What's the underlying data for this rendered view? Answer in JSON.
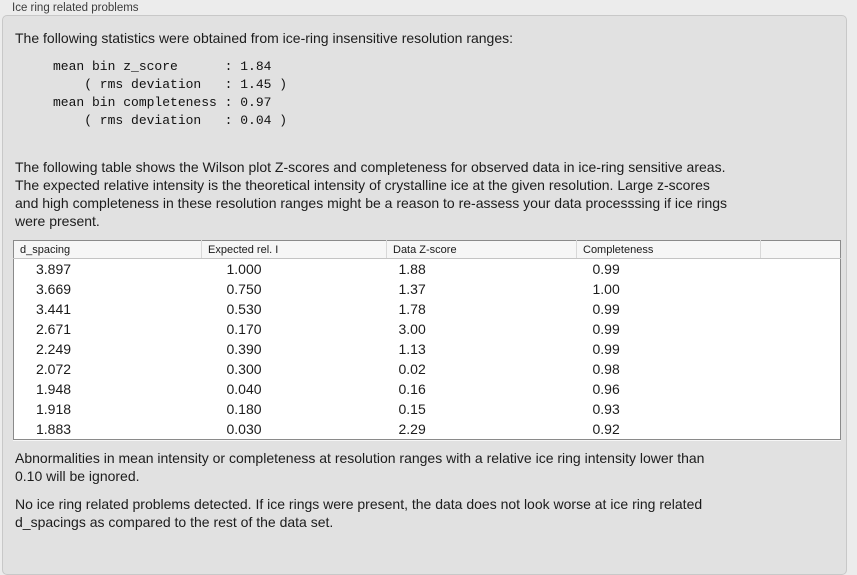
{
  "panel": {
    "title": "Ice ring related problems"
  },
  "intro": "The following statistics were obtained from ice-ring insensitive resolution ranges:",
  "stats_block": "mean bin z_score      : 1.84\n    ( rms deviation   : 1.45 )\nmean bin completeness : 0.97\n    ( rms deviation   : 0.04 )",
  "stats": {
    "mean_bin_z_score": "1.84",
    "z_score_rms_deviation": "1.45",
    "mean_bin_completeness": "0.97",
    "completeness_rms_deviation": "0.04"
  },
  "table_intro": "The following table shows the Wilson plot Z-scores and completeness for observed data in ice-ring sensitive areas.\nThe expected relative intensity is the theoretical intensity of crystalline ice at the given resolution. Large z-scores\nand high completeness in these resolution ranges might be a reason to re-assess your data processsing if ice rings\nwere present.",
  "table": {
    "columns": [
      "d_spacing",
      "Expected rel. I",
      "Data Z-score",
      "Completeness",
      ""
    ],
    "rows": [
      [
        "3.897",
        "1.000",
        "1.88",
        "0.99"
      ],
      [
        "3.669",
        "0.750",
        "1.37",
        "1.00"
      ],
      [
        "3.441",
        "0.530",
        "1.78",
        "0.99"
      ],
      [
        "2.671",
        "0.170",
        "3.00",
        "0.99"
      ],
      [
        "2.249",
        "0.390",
        "1.13",
        "0.99"
      ],
      [
        "2.072",
        "0.300",
        "0.02",
        "0.98"
      ],
      [
        "1.948",
        "0.040",
        "0.16",
        "0.96"
      ],
      [
        "1.918",
        "0.180",
        "0.15",
        "0.93"
      ],
      [
        "1.883",
        "0.030",
        "2.29",
        "0.92"
      ]
    ]
  },
  "note_ignore": "Abnormalities in mean intensity or completeness at resolution ranges with a relative ice ring intensity lower than\n0.10 will be ignored.",
  "conclusion": "No ice ring related problems detected. If ice rings were present, the data does not look worse at ice ring related\nd_spacings as compared to the rest of the data set.",
  "colors": {
    "outer_background": "#ececec",
    "box_background": "#e1e1e1",
    "box_border": "#c8c8c8",
    "table_border": "#8a8a8a",
    "table_header_background": "#f6f6f6",
    "text": "#1c1c1c"
  }
}
